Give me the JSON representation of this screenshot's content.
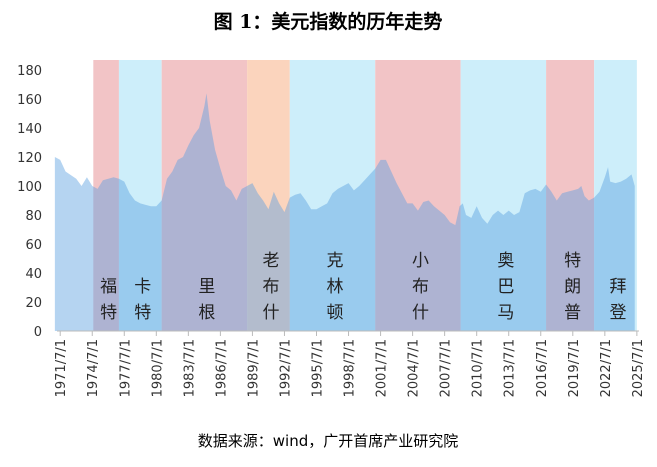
{
  "chart_data": {
    "type": "area",
    "title": "图 1：美元指数的历年走势",
    "source": "数据来源：wind，广开首席产业研究院",
    "x": [
      1971.0,
      1971.5,
      1972,
      1973,
      1973.5,
      1974,
      1974.5,
      1975,
      1975.5,
      1976,
      1976.5,
      1977,
      1977.5,
      1978,
      1978.5,
      1979,
      1979.5,
      1980,
      1980.5,
      1981,
      1981.5,
      1982,
      1982.5,
      1983,
      1983.5,
      1984,
      1984.5,
      1985.0,
      1985.2,
      1985.5,
      1986,
      1986.5,
      1987,
      1987.5,
      1988,
      1988.5,
      1989,
      1989.5,
      1990,
      1990.5,
      1991,
      1991.5,
      1992,
      1992.5,
      1993,
      1993.5,
      1994,
      1994.5,
      1995,
      1995.5,
      1996,
      1996.5,
      1997,
      1997.5,
      1998,
      1998.5,
      1999,
      1999.5,
      2000,
      2000.5,
      2001,
      2001.5,
      2002,
      2002.5,
      2003,
      2003.5,
      2004,
      2004.5,
      2005,
      2005.5,
      2006,
      2006.5,
      2007,
      2007.5,
      2008,
      2008.5,
      2008.9,
      2009.2,
      2009.5,
      2010,
      2010.5,
      2011,
      2011.5,
      2012,
      2012.5,
      2013,
      2013.5,
      2014,
      2014.5,
      2015,
      2015.5,
      2016,
      2016.5,
      2017,
      2017.5,
      2018,
      2018.5,
      2019,
      2019.5,
      2020,
      2020.3,
      2020.6,
      2021,
      2021.5,
      2022,
      2022.5,
      2022.8,
      2023,
      2023.5,
      2024,
      2024.5,
      2025,
      2025.3
    ],
    "series": [
      {
        "color": "#5aa0e0",
        "values": [
          120,
          118,
          110,
          105,
          100,
          106,
          100,
          98,
          104,
          105,
          106,
          105,
          103,
          95,
          90,
          88,
          87,
          86,
          86,
          90,
          105,
          110,
          118,
          120,
          128,
          135,
          140,
          155,
          164,
          145,
          125,
          112,
          100,
          97,
          90,
          98,
          100,
          102,
          95,
          90,
          84,
          96,
          88,
          82,
          92,
          94,
          95,
          90,
          84,
          84,
          86,
          88,
          95,
          98,
          100,
          102,
          97,
          100,
          104,
          108,
          112,
          118,
          118,
          110,
          102,
          95,
          88,
          88,
          83,
          89,
          90,
          86,
          83,
          80,
          75,
          73,
          86,
          88,
          80,
          78,
          86,
          78,
          74,
          80,
          83,
          80,
          83,
          80,
          82,
          95,
          97,
          98,
          96,
          101,
          96,
          90,
          95,
          96,
          97,
          98,
          100,
          93,
          90,
          92,
          96,
          106,
          113,
          103,
          102,
          103,
          105,
          108,
          100
        ]
      }
    ],
    "bands": [
      {
        "label": "福特",
        "start": 1974.6,
        "end": 1977.0,
        "color": "#f2c4c6"
      },
      {
        "label": "卡特",
        "start": 1977.0,
        "end": 1981.0,
        "color": "#cdeefa"
      },
      {
        "label": "里根",
        "start": 1981.0,
        "end": 1989.0,
        "color": "#f2c4c6"
      },
      {
        "label": "老布什",
        "start": 1989.0,
        "end": 1993.0,
        "color": "#fbd4bd"
      },
      {
        "label": "克林顿",
        "start": 1993.0,
        "end": 2001.0,
        "color": "#cdeefa"
      },
      {
        "label": "小布什",
        "start": 2001.0,
        "end": 2009.0,
        "color": "#f2c4c6"
      },
      {
        "label": "奥巴马",
        "start": 2009.0,
        "end": 2017.0,
        "color": "#cdeefa"
      },
      {
        "label": "特朗普",
        "start": 2017.0,
        "end": 2021.5,
        "color": "#f2c4c6"
      },
      {
        "label": "拜登",
        "start": 2021.5,
        "end": 2025.5,
        "color": "#cdeefa"
      }
    ],
    "xlim": [
      1971.2,
      2025.7
    ],
    "xticks": [
      {
        "value": 1971.5,
        "label": "1971/7/1"
      },
      {
        "value": 1974.5,
        "label": "1974/7/1"
      },
      {
        "value": 1977.5,
        "label": "1977/7/1"
      },
      {
        "value": 1980.5,
        "label": "1980/7/1"
      },
      {
        "value": 1983.5,
        "label": "1983/7/1"
      },
      {
        "value": 1986.5,
        "label": "1986/7/1"
      },
      {
        "value": 1989.5,
        "label": "1989/7/1"
      },
      {
        "value": 1992.5,
        "label": "1992/7/1"
      },
      {
        "value": 1995.5,
        "label": "1995/7/1"
      },
      {
        "value": 1998.5,
        "label": "1998/7/1"
      },
      {
        "value": 2001.5,
        "label": "2001/7/1"
      },
      {
        "value": 2004.5,
        "label": "2004/7/1"
      },
      {
        "value": 2007.5,
        "label": "2007/7/1"
      },
      {
        "value": 2010.5,
        "label": "2010/7/1"
      },
      {
        "value": 2013.5,
        "label": "2013/7/1"
      },
      {
        "value": 2016.5,
        "label": "2016/7/1"
      },
      {
        "value": 2019.5,
        "label": "2019/7/1"
      },
      {
        "value": 2022.5,
        "label": "2022/7/1"
      },
      {
        "value": 2025.5,
        "label": "2025/7/1"
      }
    ],
    "ylim": [
      0,
      180
    ],
    "yticks": [
      0,
      20,
      40,
      60,
      80,
      100,
      120,
      140,
      160,
      180
    ]
  }
}
